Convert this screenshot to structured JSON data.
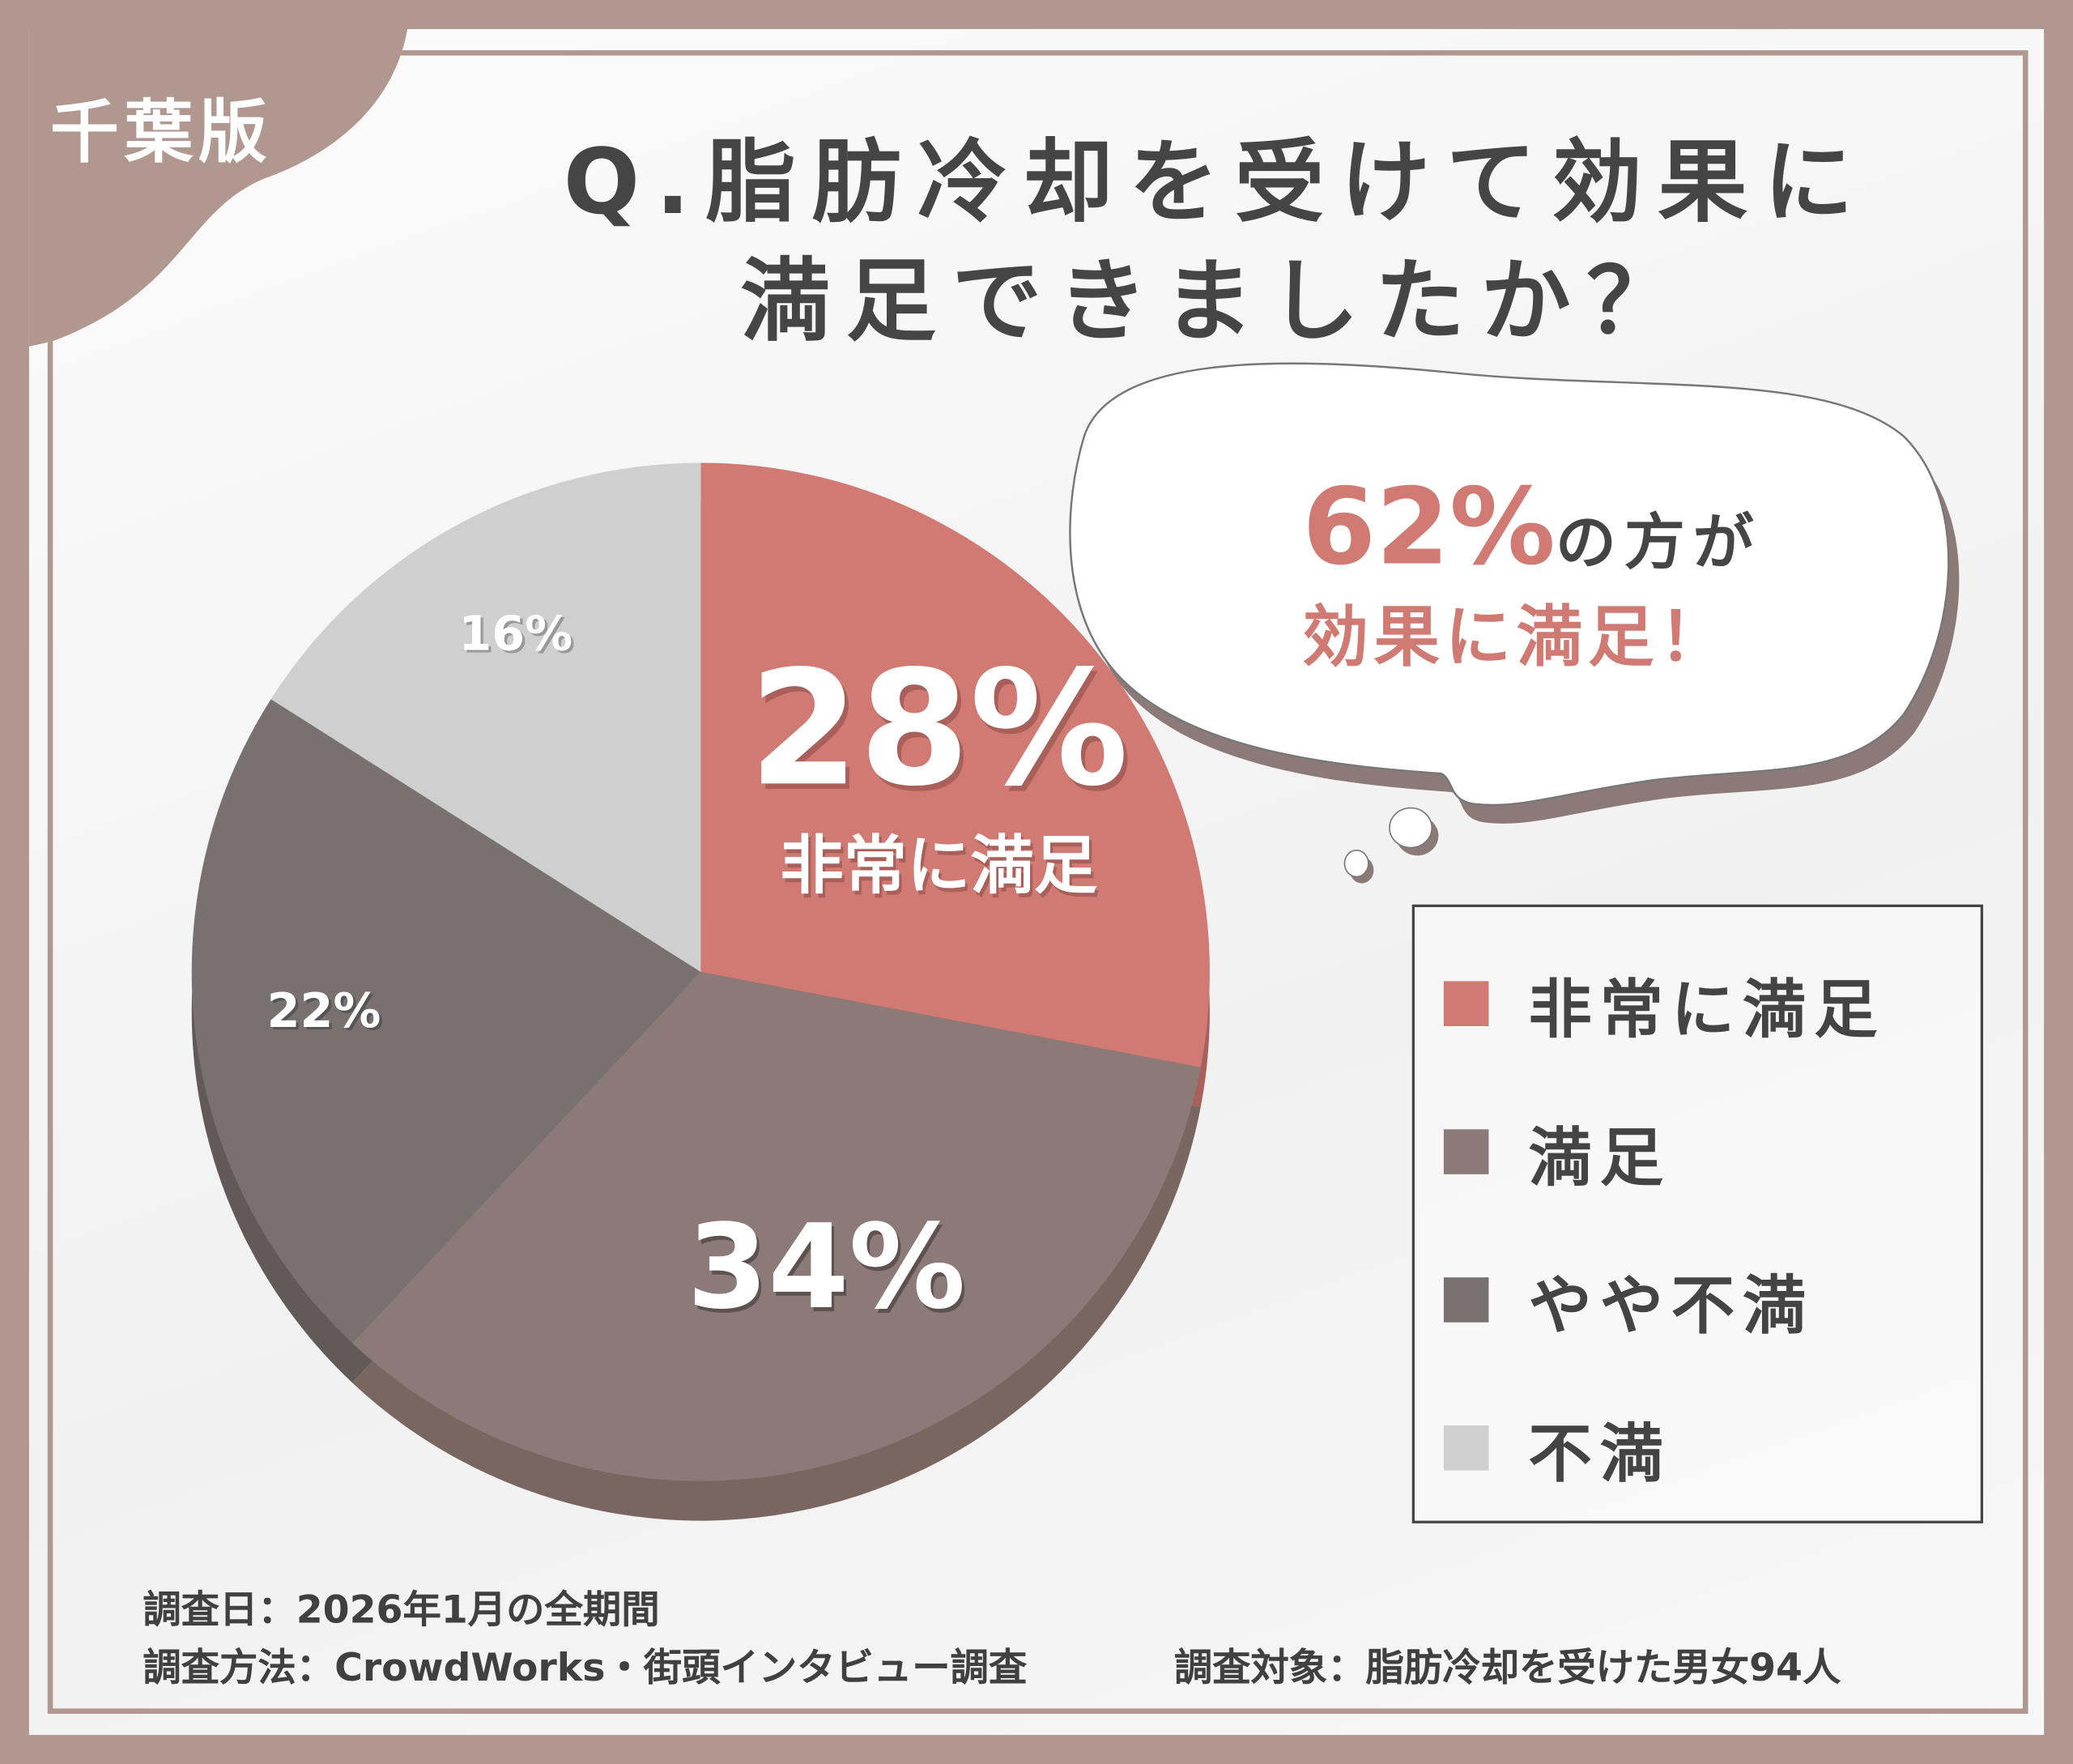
{
  "badge": "千葉版",
  "title": {
    "line1": "Q.脂肪冷却を受けて効果に",
    "line2": "満足できましたか？"
  },
  "callout": {
    "percent": "62%",
    "suffix": "の方が",
    "line2": "効果に満足！"
  },
  "chart_data": {
    "type": "pie",
    "title": "Q.脂肪冷却を受けて効果に満足できましたか？",
    "categories": [
      "非常に満足",
      "満足",
      "やや不満",
      "不満"
    ],
    "values": [
      28,
      34,
      22,
      16
    ],
    "labels": [
      "28%",
      "34%",
      "22%",
      "16%"
    ],
    "highlight_label": "非常に満足",
    "colors": [
      "#d07a73",
      "#8c7a78",
      "#787170",
      "#cfcfcf"
    ],
    "shadow_colors": [
      "#a9605a",
      "#7a6660",
      "#625a59",
      "#b0b0b0"
    ],
    "start": "top",
    "direction": "clockwise",
    "legend": "right"
  },
  "legend": [
    {
      "label": "非常に満足",
      "color": "#d07a73"
    },
    {
      "label": "満足",
      "color": "#8c7a78"
    },
    {
      "label": "やや不満",
      "color": "#787170"
    },
    {
      "label": "不満",
      "color": "#cfcfcf"
    }
  ],
  "footer": {
    "date": "調査日：2026年1月の全期間",
    "method": "調査方法：CrowdWorks・街頭インタビュー調査",
    "target": "調査対象：脂肪冷却を受けた男女94人"
  },
  "colors": {
    "frame": "#b09890",
    "accent": "#d07a73",
    "text": "#454545"
  }
}
